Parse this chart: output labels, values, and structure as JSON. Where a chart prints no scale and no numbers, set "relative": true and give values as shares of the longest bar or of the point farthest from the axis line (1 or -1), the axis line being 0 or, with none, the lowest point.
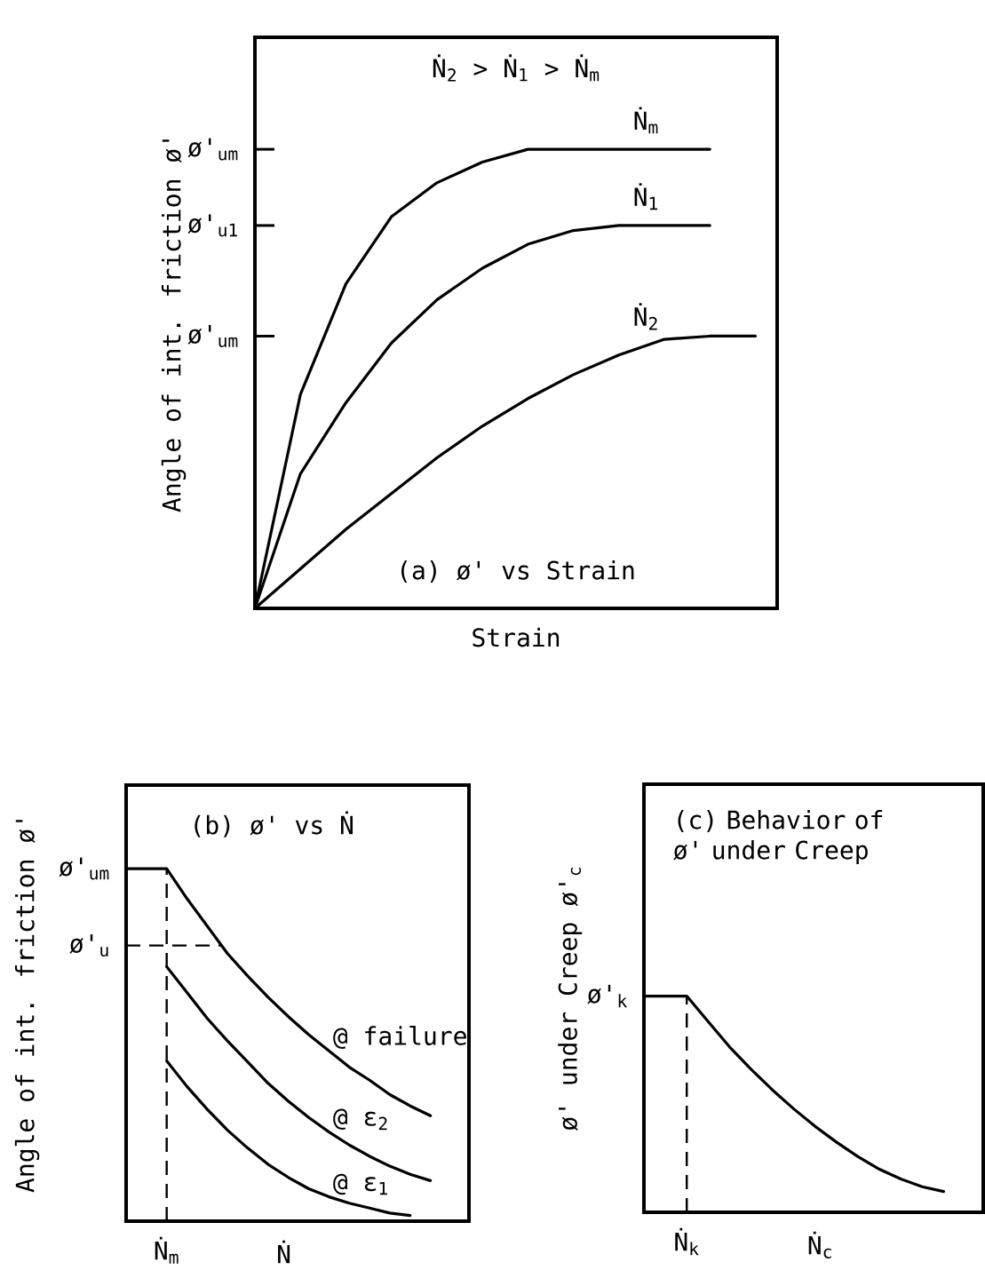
{
  "chart_data": [
    {
      "type": "line",
      "relative": true,
      "title": "(a) ø' vs Strain",
      "xlabel": "Strain",
      "ylabel": "Angle of int. friction ø'",
      "categories": [
        null,
        null,
        null,
        null,
        null,
        null,
        null,
        null,
        null,
        null,
        null,
        null
      ],
      "series": [
        {
          "name": "Ṅ$_{m}$",
          "color": "#000000",
          "values": [
            0,
            0.466,
            0.707,
            0.853,
            0.927,
            0.972,
            1,
            1,
            1,
            1,
            1,
            null
          ]
        },
        {
          "name": "Ṅ$_{1}$",
          "color": "#000000",
          "values": [
            0,
            0.293,
            0.448,
            0.578,
            0.672,
            0.741,
            0.793,
            0.823,
            0.834,
            0.834,
            0.834,
            null
          ]
        },
        {
          "name": "Ṅ$_{2}$",
          "color": "#000000",
          "values": [
            0,
            0.086,
            0.172,
            0.25,
            0.328,
            0.397,
            0.457,
            0.509,
            0.552,
            0.586,
            0.593,
            0.593
          ]
        }
      ],
      "annotations": [
        "Ṅ$_{2}$ > Ṅ$_{1}$ > Ṅ$_{m}$",
        "ø'$_{um}$",
        "ø'$_{u1}$",
        "ø'$_{um}$"
      ]
    },
    {
      "type": "line",
      "relative": true,
      "title": "(b) ø' vs Ṅ",
      "xlabel": "Ṅ",
      "ylabel": "Angle of int. friction ø'",
      "categories": [
        null,
        null,
        null,
        null,
        null,
        null,
        null,
        null,
        null,
        null,
        null,
        null,
        null,
        null,
        null,
        null
      ],
      "series": [
        {
          "name": "@ failure",
          "color": "#000000",
          "values": [
            1,
            1,
            1,
            0.915,
            0.837,
            0.759,
            0.695,
            0.635,
            0.58,
            0.529,
            0.483,
            0.437,
            0.4,
            0.359,
            0.327,
            0.299
          ]
        },
        {
          "name": "@ ε$_{2}$",
          "color": "#000000",
          "values": [
            null,
            null,
            0.722,
            0.649,
            0.575,
            0.511,
            0.451,
            0.391,
            0.34,
            0.294,
            0.253,
            0.216,
            0.184,
            0.156,
            0.133,
            0.115
          ]
        },
        {
          "name": "@ ε$_{1}$",
          "color": "#000000",
          "values": [
            null,
            null,
            0.455,
            0.382,
            0.317,
            0.258,
            0.207,
            0.161,
            0.124,
            0.092,
            0.069,
            0.051,
            0.037,
            0.023,
            0.016,
            null
          ]
        }
      ],
      "ref_lines": [
        {
          "axis": "x",
          "value": "Ṅ$_{m}$",
          "line_style": "dashed"
        },
        {
          "axis": "y",
          "value": 0.782,
          "line_style": "dashed",
          "label": "ø'$_{u}$"
        }
      ],
      "annotations": [
        "ø'$_{um}$"
      ]
    },
    {
      "type": "line",
      "relative": true,
      "title": "(c) Behavior of ø' under Creep",
      "xlabel": "Ṅ$_{c}$",
      "ylabel": "ø' under Creep ø'$_{c}$",
      "categories": [
        null,
        null,
        null,
        null,
        null,
        null,
        null,
        null,
        null,
        null,
        null,
        null,
        null,
        null,
        null
      ],
      "series": [
        {
          "color": "#000000",
          "values": [
            1,
            1,
            1,
            0.882,
            0.765,
            0.662,
            0.566,
            0.478,
            0.397,
            0.324,
            0.257,
            0.199,
            0.154,
            0.118,
            0.096
          ]
        }
      ],
      "ref_lines": [
        {
          "axis": "x",
          "value": "Ṅ$_{k}$",
          "line_style": "dashed"
        }
      ],
      "annotations": [
        "ø'$_{k}$"
      ]
    }
  ]
}
